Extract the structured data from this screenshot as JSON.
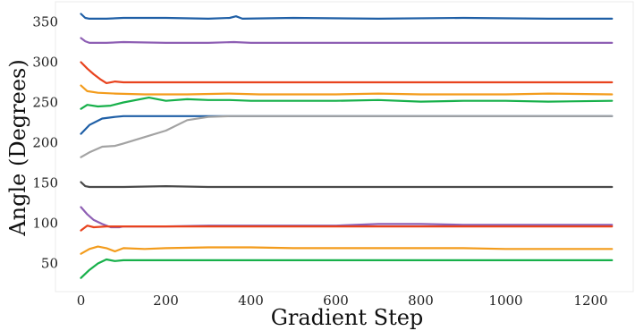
{
  "chart_data": {
    "type": "line",
    "title": "",
    "xlabel": "Gradient Step",
    "ylabel": "Angle (Degrees)",
    "xlim": [
      -60,
      1300
    ],
    "ylim": [
      15,
      375
    ],
    "xticks": [
      0,
      200,
      400,
      600,
      800,
      1000,
      1200
    ],
    "yticks": [
      50,
      100,
      150,
      200,
      250,
      300,
      350
    ],
    "grid": false,
    "legend": "none",
    "series": [
      {
        "color": "#1f5fa6",
        "x": [
          0,
          10,
          20,
          60,
          100,
          200,
          300,
          350,
          365,
          380,
          500,
          700,
          900,
          1100,
          1250
        ],
        "y": [
          360,
          355,
          354,
          354,
          355,
          355,
          354,
          355,
          357,
          354,
          355,
          354,
          355,
          354,
          354
        ]
      },
      {
        "color": "#8e5fb4",
        "x": [
          0,
          10,
          20,
          60,
          100,
          200,
          300,
          360,
          400,
          600,
          800,
          1000,
          1250
        ],
        "y": [
          330,
          326,
          324,
          324,
          325,
          324,
          324,
          325,
          324,
          324,
          324,
          324,
          324
        ]
      },
      {
        "color": "#e8431e",
        "x": [
          0,
          15,
          30,
          45,
          60,
          80,
          100,
          200,
          400,
          600,
          800,
          1000,
          1250
        ],
        "y": [
          300,
          292,
          285,
          279,
          274,
          276,
          275,
          275,
          275,
          275,
          275,
          275,
          275
        ]
      },
      {
        "color": "#f39c1c",
        "x": [
          0,
          15,
          40,
          80,
          150,
          250,
          350,
          420,
          500,
          600,
          700,
          800,
          900,
          1000,
          1100,
          1250
        ],
        "y": [
          271,
          264,
          262,
          261,
          260,
          260,
          261,
          260,
          260,
          260,
          261,
          260,
          260,
          260,
          261,
          260
        ]
      },
      {
        "color": "#17b04a",
        "x": [
          0,
          15,
          40,
          70,
          100,
          160,
          200,
          250,
          300,
          350,
          400,
          500,
          600,
          700,
          800,
          900,
          1000,
          1100,
          1250
        ],
        "y": [
          242,
          247,
          245,
          246,
          250,
          256,
          252,
          254,
          253,
          253,
          252,
          252,
          252,
          253,
          251,
          252,
          252,
          251,
          252
        ]
      },
      {
        "color": "#1f5fa6",
        "x": [
          0,
          20,
          50,
          80,
          100,
          150,
          200,
          300,
          400,
          500,
          600,
          700,
          800,
          900,
          1000,
          1100,
          1250
        ],
        "y": [
          211,
          222,
          230,
          232,
          233,
          233,
          233,
          233,
          233,
          233,
          233,
          233,
          233,
          233,
          233,
          233,
          233
        ]
      },
      {
        "color": "#a3a3a3",
        "x": [
          0,
          20,
          50,
          80,
          100,
          150,
          200,
          250,
          300,
          350,
          400,
          600,
          800,
          1000,
          1250
        ],
        "y": [
          182,
          188,
          195,
          196,
          199,
          207,
          215,
          228,
          232,
          233,
          233,
          233,
          233,
          233,
          233
        ]
      },
      {
        "color": "#4a4a4a",
        "x": [
          0,
          10,
          20,
          60,
          100,
          200,
          300,
          400,
          600,
          800,
          1000,
          1250
        ],
        "y": [
          151,
          146,
          145,
          145,
          145,
          146,
          145,
          145,
          145,
          145,
          145,
          145
        ]
      },
      {
        "color": "#8e5fb4",
        "x": [
          0,
          15,
          30,
          50,
          70,
          90,
          100,
          200,
          300,
          400,
          500,
          600,
          700,
          800,
          900,
          1000,
          1100,
          1250
        ],
        "y": [
          120,
          111,
          104,
          99,
          95,
          95,
          96,
          96,
          97,
          97,
          97,
          97,
          99,
          99,
          98,
          98,
          98,
          98
        ]
      },
      {
        "color": "#e8431e",
        "x": [
          0,
          15,
          30,
          60,
          100,
          200,
          300,
          400,
          600,
          800,
          1000,
          1250
        ],
        "y": [
          91,
          97,
          95,
          96,
          96,
          96,
          96,
          96,
          96,
          96,
          96,
          96
        ]
      },
      {
        "color": "#f39c1c",
        "x": [
          0,
          20,
          40,
          60,
          80,
          100,
          150,
          200,
          300,
          400,
          500,
          600,
          700,
          800,
          900,
          1000,
          1100,
          1250
        ],
        "y": [
          62,
          68,
          71,
          69,
          65,
          69,
          68,
          69,
          70,
          70,
          69,
          69,
          69,
          69,
          69,
          68,
          68,
          68
        ]
      },
      {
        "color": "#17b04a",
        "x": [
          0,
          20,
          40,
          60,
          80,
          100,
          200,
          400,
          600,
          800,
          1000,
          1250
        ],
        "y": [
          32,
          42,
          50,
          55,
          53,
          54,
          54,
          54,
          54,
          54,
          54,
          54
        ]
      }
    ]
  }
}
